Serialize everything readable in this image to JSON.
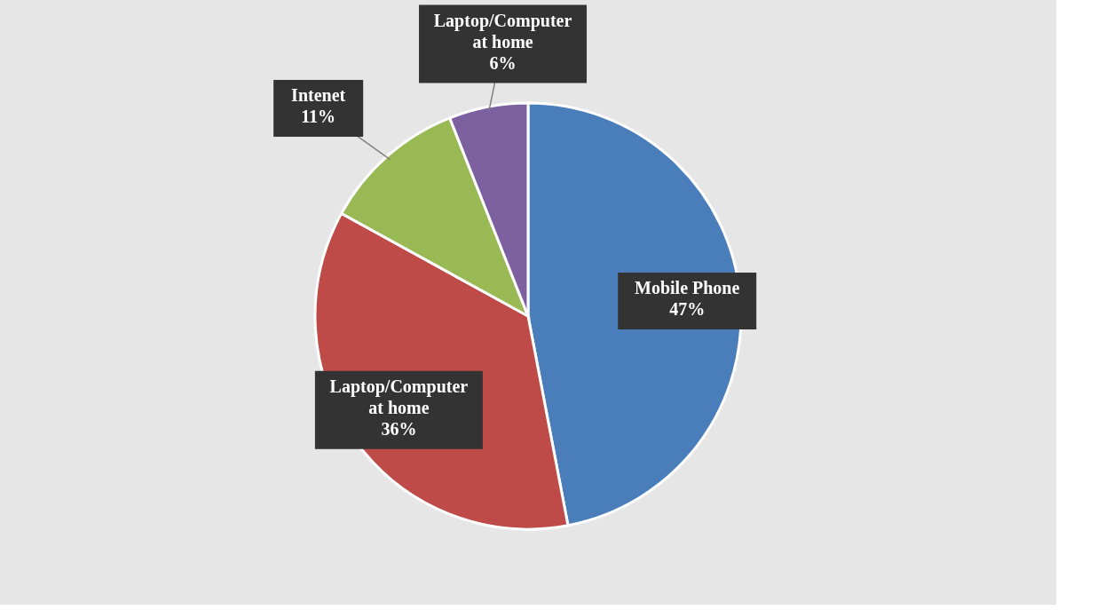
{
  "chart_data": {
    "type": "pie",
    "categories": [
      "Mobile Phone",
      "Laptop/Computer at home",
      "Intenet",
      "Laptop/Computer at home"
    ],
    "values": [
      47,
      36,
      11,
      6
    ],
    "colors": [
      "#4a7ebb",
      "#be4b48",
      "#98b954",
      "#7d60a0"
    ],
    "value_labels": [
      "47%",
      "36%",
      "11%",
      "6%"
    ],
    "legend": false
  }
}
